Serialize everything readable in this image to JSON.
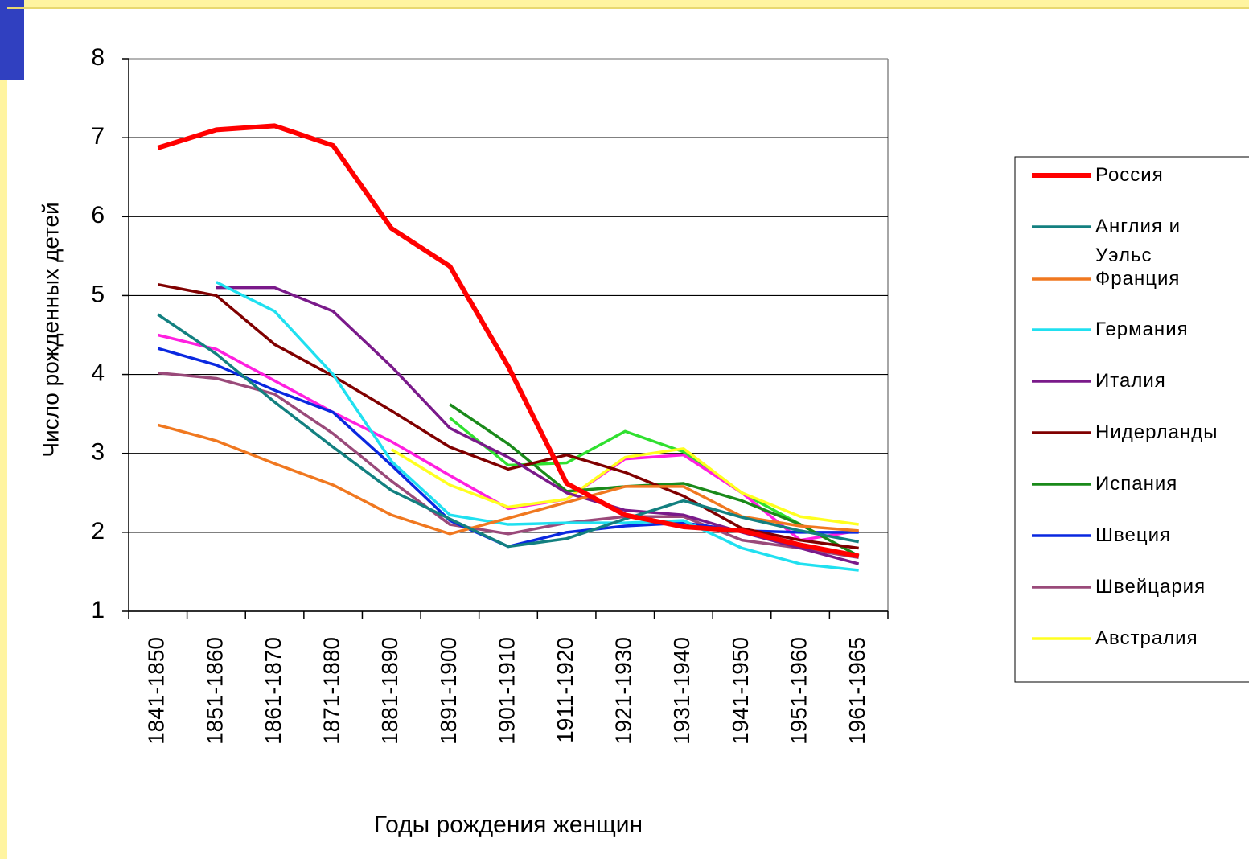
{
  "chart_data": {
    "type": "line",
    "x_label": "Годы рождения женщин",
    "y_label": "Число рожденных детей",
    "categories": [
      "1841-1850",
      "1851-1860",
      "1861-1870",
      "1871-1880",
      "1881-1890",
      "1891-1900",
      "1901-1910",
      "1911-1920",
      "1921-1930",
      "1931-1940",
      "1941-1950",
      "1951-1960",
      "1961-1965"
    ],
    "ylim": [
      1,
      8
    ],
    "yticks": [
      1,
      2,
      3,
      4,
      5,
      6,
      7,
      8
    ],
    "grid": true,
    "legend": "right",
    "series": [
      {
        "name": "Россия",
        "color": "#ff0000",
        "values": [
          6.87,
          7.1,
          7.15,
          6.9,
          5.85,
          5.37,
          4.1,
          2.62,
          2.22,
          2.07,
          2.02,
          1.84,
          1.7
        ]
      },
      {
        "name": "Англия и Уэльс",
        "color": "#138080",
        "values": [
          4.76,
          4.26,
          3.65,
          3.08,
          2.53,
          2.17,
          1.82,
          1.92,
          2.17,
          2.4,
          2.19,
          2.02,
          1.88
        ]
      },
      {
        "name": "Франция",
        "color": "#f07820",
        "values": [
          3.36,
          3.16,
          2.87,
          2.6,
          2.22,
          1.98,
          2.18,
          2.38,
          2.58,
          2.58,
          2.2,
          2.08,
          2.02
        ]
      },
      {
        "name": "Германия",
        "color": "#20e0f0",
        "values": [
          null,
          5.17,
          4.8,
          4.0,
          2.9,
          2.22,
          2.1,
          2.12,
          2.12,
          2.15,
          1.8,
          1.6,
          1.52
        ]
      },
      {
        "name": "Италия",
        "color": "#7a1a8a",
        "values": [
          null,
          5.1,
          5.1,
          4.8,
          4.1,
          3.32,
          2.95,
          2.5,
          2.28,
          2.22,
          2.0,
          1.8,
          1.6
        ]
      },
      {
        "name": "Нидерланды",
        "color": "#800000",
        "values": [
          5.14,
          5.0,
          4.38,
          3.98,
          3.54,
          3.08,
          2.8,
          2.98,
          2.76,
          2.46,
          2.05,
          1.9,
          1.8
        ]
      },
      {
        "name": "Испания",
        "color": "#1a8a1a",
        "values": [
          null,
          null,
          null,
          null,
          null,
          3.62,
          3.12,
          2.52,
          2.58,
          2.62,
          2.4,
          2.1,
          1.7
        ]
      },
      {
        "name": "Швеция",
        "color": "#0a28e0",
        "values": [
          4.33,
          4.12,
          3.8,
          3.52,
          2.85,
          2.15,
          1.82,
          2.0,
          2.08,
          2.12,
          2.02,
          2.0,
          2.0
        ]
      },
      {
        "name": "Швейцария",
        "color": "#9a4a7a",
        "values": [
          4.02,
          3.95,
          3.75,
          3.25,
          2.65,
          2.1,
          1.98,
          2.12,
          2.2,
          2.2,
          1.9,
          1.8,
          1.68
        ]
      },
      {
        "name": "Австралия",
        "color": "#ffff20",
        "values": [
          null,
          null,
          null,
          null,
          3.05,
          2.6,
          2.32,
          2.42,
          2.95,
          3.06,
          2.5,
          2.2,
          2.1
        ]
      },
      {
        "name": null,
        "color": "#ff20e0",
        "values": [
          4.5,
          4.32,
          3.92,
          3.52,
          3.15,
          2.72,
          2.3,
          2.42,
          2.93,
          2.98,
          2.5,
          1.9,
          2.02
        ]
      },
      {
        "name": null,
        "color": "#30e030",
        "values": [
          null,
          null,
          null,
          null,
          null,
          3.45,
          2.85,
          2.88,
          3.28,
          3.02,
          2.5,
          2.1,
          null
        ]
      }
    ]
  }
}
